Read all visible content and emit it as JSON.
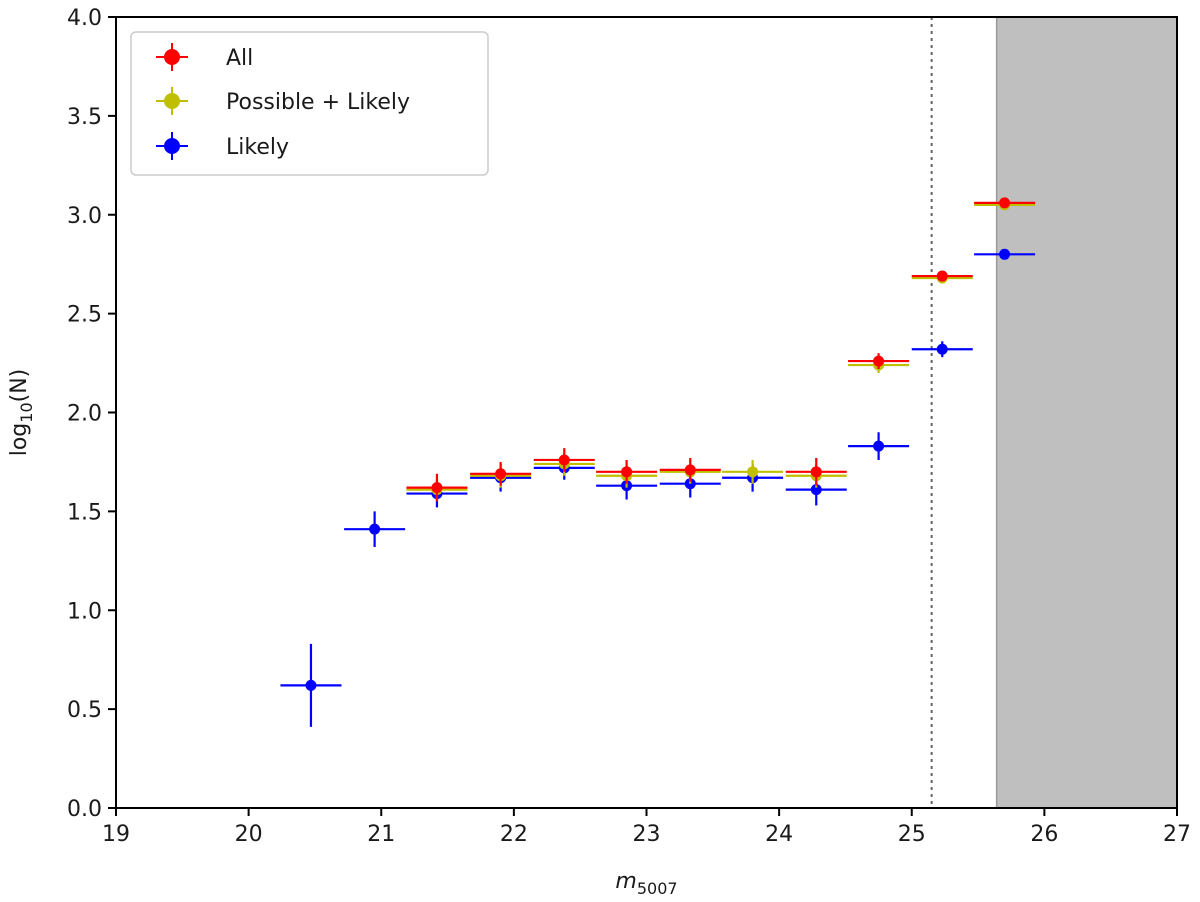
{
  "chart_data": {
    "type": "scatter",
    "xlabel": {
      "base": "m",
      "sub": "5007"
    },
    "ylabel": {
      "pre": "log",
      "sub": "10",
      "post": "(N)"
    },
    "xlim": [
      19,
      27
    ],
    "ylim": [
      0,
      4
    ],
    "xticks": [
      19,
      20,
      21,
      22,
      23,
      24,
      25,
      26,
      27
    ],
    "xtick_labels": [
      "19",
      "20",
      "21",
      "22",
      "23",
      "24",
      "25",
      "26",
      "27"
    ],
    "yticks": [
      0,
      0.5,
      1,
      1.5,
      2,
      2.5,
      3,
      3.5,
      4
    ],
    "ytick_labels": [
      "0.0",
      "0.5",
      "1.0",
      "1.5",
      "2.0",
      "2.5",
      "3.0",
      "3.5",
      "4.0"
    ],
    "grid": false,
    "legend_position": "top-left",
    "annotations": {
      "dotted_vline_x": 25.15,
      "shaded_region_x": [
        25.64,
        27
      ]
    },
    "series": [
      {
        "name": "Likely",
        "color": "#0000ff",
        "points": [
          {
            "x": 20.47,
            "y": 0.62,
            "xerr": 0.23,
            "yerr": 0.21
          },
          {
            "x": 20.95,
            "y": 1.41,
            "xerr": 0.23,
            "yerr": 0.09
          },
          {
            "x": 21.42,
            "y": 1.59,
            "xerr": 0.23,
            "yerr": 0.07
          },
          {
            "x": 21.9,
            "y": 1.67,
            "xerr": 0.23,
            "yerr": 0.07
          },
          {
            "x": 22.38,
            "y": 1.72,
            "xerr": 0.23,
            "yerr": 0.06
          },
          {
            "x": 22.85,
            "y": 1.63,
            "xerr": 0.23,
            "yerr": 0.07
          },
          {
            "x": 23.33,
            "y": 1.64,
            "xerr": 0.23,
            "yerr": 0.07
          },
          {
            "x": 23.8,
            "y": 1.67,
            "xerr": 0.23,
            "yerr": 0.07
          },
          {
            "x": 24.28,
            "y": 1.61,
            "xerr": 0.23,
            "yerr": 0.08
          },
          {
            "x": 24.75,
            "y": 1.83,
            "xerr": 0.23,
            "yerr": 0.07
          },
          {
            "x": 25.23,
            "y": 2.32,
            "xerr": 0.23,
            "yerr": 0.04
          },
          {
            "x": 25.7,
            "y": 2.8,
            "xerr": 0.23,
            "yerr": 0.02
          }
        ]
      },
      {
        "name": "Possible + Likely",
        "color": "#bfbf00",
        "points": [
          {
            "x": 21.42,
            "y": 1.61,
            "xerr": 0.23,
            "yerr": 0.06
          },
          {
            "x": 21.9,
            "y": 1.68,
            "xerr": 0.23,
            "yerr": 0.06
          },
          {
            "x": 22.38,
            "y": 1.74,
            "xerr": 0.23,
            "yerr": 0.06
          },
          {
            "x": 22.85,
            "y": 1.68,
            "xerr": 0.23,
            "yerr": 0.06
          },
          {
            "x": 23.33,
            "y": 1.7,
            "xerr": 0.23,
            "yerr": 0.06
          },
          {
            "x": 23.8,
            "y": 1.7,
            "xerr": 0.23,
            "yerr": 0.06
          },
          {
            "x": 24.28,
            "y": 1.68,
            "xerr": 0.23,
            "yerr": 0.06
          },
          {
            "x": 24.75,
            "y": 2.24,
            "xerr": 0.23,
            "yerr": 0.04
          },
          {
            "x": 25.23,
            "y": 2.68,
            "xerr": 0.23,
            "yerr": 0.02
          },
          {
            "x": 25.7,
            "y": 3.05,
            "xerr": 0.23,
            "yerr": 0.015
          }
        ]
      },
      {
        "name": "All",
        "color": "#ff0000",
        "points": [
          {
            "x": 21.42,
            "y": 1.62,
            "xerr": 0.23,
            "yerr": 0.07
          },
          {
            "x": 21.9,
            "y": 1.69,
            "xerr": 0.23,
            "yerr": 0.06
          },
          {
            "x": 22.38,
            "y": 1.76,
            "xerr": 0.23,
            "yerr": 0.06
          },
          {
            "x": 22.85,
            "y": 1.7,
            "xerr": 0.23,
            "yerr": 0.06
          },
          {
            "x": 23.33,
            "y": 1.71,
            "xerr": 0.23,
            "yerr": 0.06
          },
          {
            "x": 24.28,
            "y": 1.7,
            "xerr": 0.23,
            "yerr": 0.07
          },
          {
            "x": 24.75,
            "y": 2.26,
            "xerr": 0.23,
            "yerr": 0.04
          },
          {
            "x": 25.23,
            "y": 2.69,
            "xerr": 0.23,
            "yerr": 0.02
          },
          {
            "x": 25.7,
            "y": 3.06,
            "xerr": 0.23,
            "yerr": 0.015
          }
        ]
      }
    ],
    "legend": [
      {
        "label": "All",
        "color": "#ff0000"
      },
      {
        "label": "Possible + Likely",
        "color": "#bfbf00"
      },
      {
        "label": "Likely",
        "color": "#0000ff"
      }
    ]
  }
}
